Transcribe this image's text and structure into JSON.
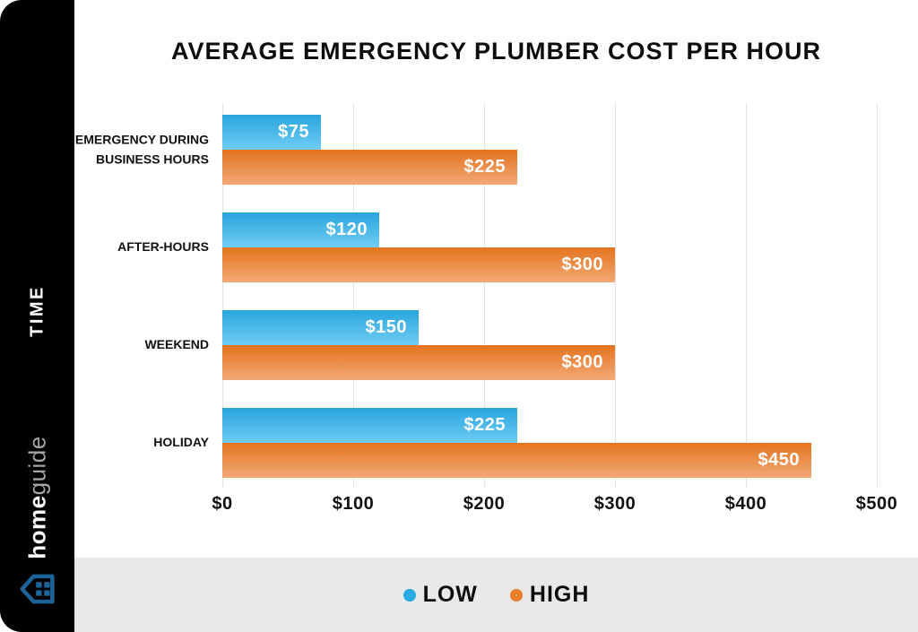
{
  "sidebar": {
    "axis_label": "TIME",
    "brand": {
      "home": "home",
      "guide": "guide"
    },
    "house_icon_color": "#1b6398",
    "background": "#000000"
  },
  "chart_data": {
    "type": "bar",
    "orientation": "horizontal",
    "title": "AVERAGE EMERGENCY PLUMBER COST PER HOUR",
    "ylabel": "TIME",
    "xlabel": "",
    "xlim": [
      0,
      500
    ],
    "x_ticks": [
      "$0",
      "$100",
      "$200",
      "$300",
      "$400",
      "$500"
    ],
    "x_tick_values": [
      0,
      100,
      200,
      300,
      400,
      500
    ],
    "grid": true,
    "legend_position": "bottom",
    "categories": [
      "EMERGENCY DURING BUSINESS HOURS",
      "AFTER-HOURS",
      "WEEKEND",
      "HOLIDAY"
    ],
    "series": [
      {
        "name": "LOW",
        "color": "#29abe2",
        "gradient": [
          "#29a5dd",
          "#70cdf4"
        ],
        "values": [
          75,
          120,
          150,
          225
        ],
        "labels": [
          "$75",
          "$120",
          "$150",
          "$225"
        ]
      },
      {
        "name": "HIGH",
        "color": "#f07d2b",
        "gradient": [
          "#e4731e",
          "#f2a977"
        ],
        "values": [
          225,
          300,
          300,
          450
        ],
        "labels": [
          "$225",
          "$300",
          "$300",
          "$450"
        ]
      }
    ]
  },
  "legend": {
    "items": [
      {
        "label": "LOW",
        "color": "#29abe2"
      },
      {
        "label": "HIGH",
        "color": "#f07d2b"
      }
    ]
  }
}
